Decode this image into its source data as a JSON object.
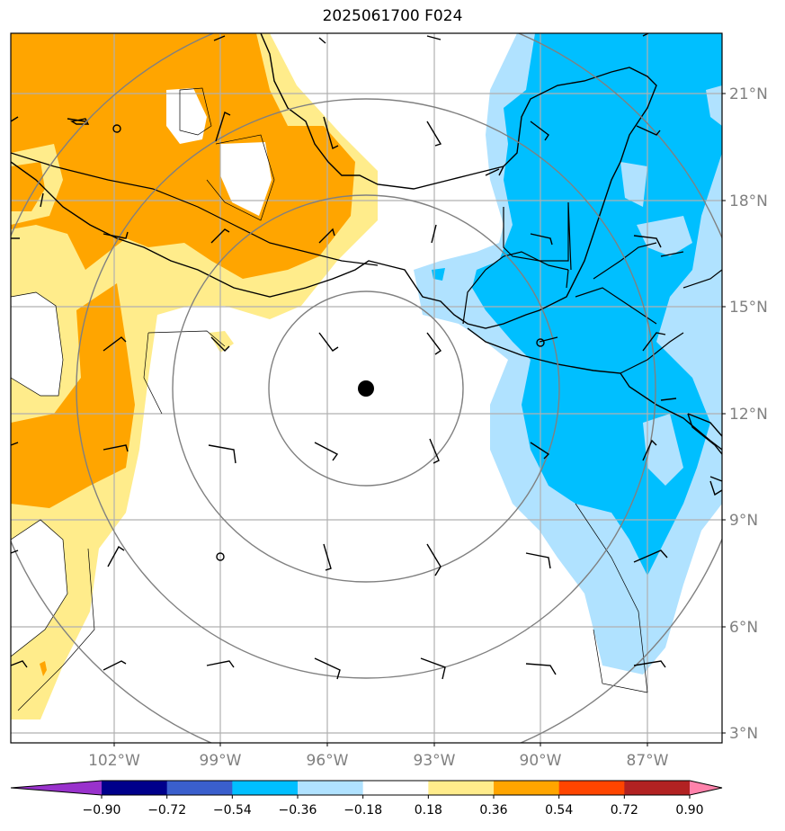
{
  "title": "2025061700 F024",
  "lon_ticks": [
    "102°W",
    "99°W",
    "96°W",
    "93°W",
    "90°W",
    "87°W"
  ],
  "lat_ticks": [
    "21°N",
    "18°N",
    "15°N",
    "12°N",
    "9°N",
    "6°N",
    "3°N"
  ],
  "colorbar": {
    "labels": [
      "−0.90",
      "−0.72",
      "−0.54",
      "−0.36",
      "−0.18",
      "0.18",
      "0.36",
      "0.54",
      "0.72",
      "0.90"
    ],
    "colors": [
      "#9932cc",
      "#00008b",
      "#3a5fcd",
      "#00bfff",
      "#b0e2ff",
      "#ffffff",
      "#ffec8b",
      "#ffa500",
      "#ff4500",
      "#b22222",
      "#ff82ab"
    ]
  },
  "colors": {
    "pos_light": "#ffec8b",
    "pos_mid": "#ffa500",
    "neg_light": "#b0e2ff",
    "neg_mid": "#00bfff",
    "grid": "#b0b0b0",
    "range_ring": "#808080"
  },
  "storm_center": {
    "lon": -94.9,
    "lat": 12.7
  }
}
